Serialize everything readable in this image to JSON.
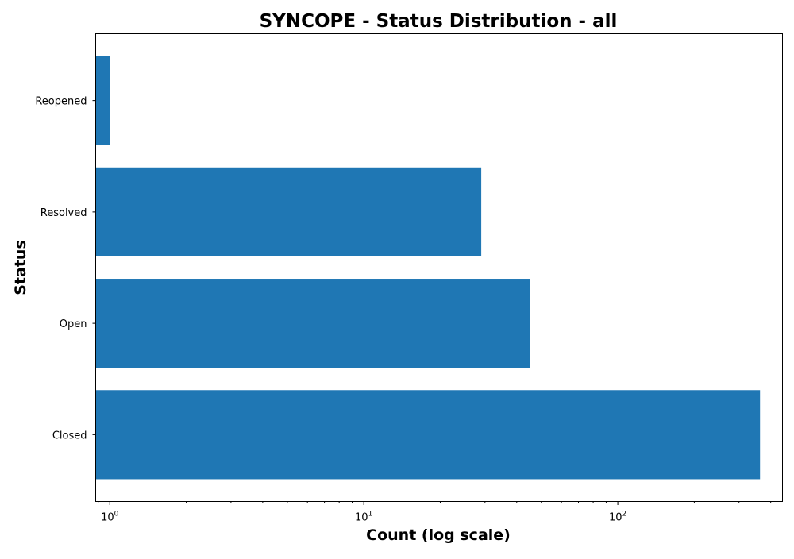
{
  "chart_data": {
    "type": "bar",
    "orientation": "horizontal",
    "title": "SYNCOPE - Status Distribution - all",
    "xlabel": "Count (log scale)",
    "ylabel": "Status",
    "x_scale": "log",
    "xlim": [
      0.88,
      445
    ],
    "x_ticks": [
      {
        "base": "10",
        "exponent": "0",
        "value": 1
      },
      {
        "base": "10",
        "exponent": "1",
        "value": 10
      },
      {
        "base": "10",
        "exponent": "2",
        "value": 100
      }
    ],
    "categories": [
      "Closed",
      "Open",
      "Resolved",
      "Reopened"
    ],
    "values": [
      363,
      45,
      29,
      1
    ],
    "bar_color": "#1f77b4",
    "grid": false,
    "legend": "none"
  }
}
